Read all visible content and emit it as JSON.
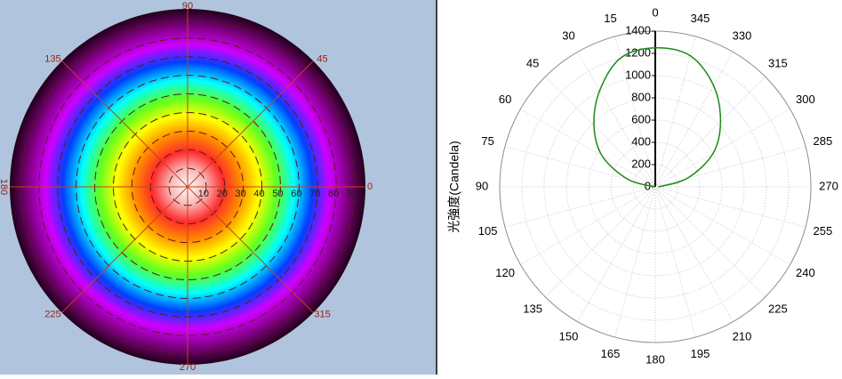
{
  "chart_data": [
    {
      "type": "polar-heatmap",
      "colormap": [
        "#ffffff",
        "#f8b8b8",
        "#ff2a2a",
        "#ff8c00",
        "#ffff00",
        "#60ff20",
        "#00ffff",
        "#0040ff",
        "#d000ff",
        "#800080",
        "#200018"
      ],
      "axis_color": "#c8401a",
      "angle_ticks": [
        0,
        45,
        90,
        135,
        180,
        225,
        270,
        315
      ],
      "rlim": [
        0,
        90
      ],
      "rticks": [
        10,
        20,
        30,
        40,
        50,
        60,
        70,
        80,
        90
      ]
    },
    {
      "type": "polar",
      "ylabel": "光強度(Candela)",
      "theta_ticks": [
        0,
        15,
        30,
        45,
        60,
        75,
        90,
        105,
        120,
        135,
        150,
        165,
        180,
        195,
        210,
        225,
        240,
        255,
        270,
        285,
        300,
        315,
        330,
        345
      ],
      "rlim": [
        0,
        1400
      ],
      "rticks": [
        0,
        200,
        400,
        600,
        800,
        1000,
        1200,
        1400
      ],
      "grid": true,
      "series": [
        {
          "color": "#1a8a1a",
          "x": [
            270,
            285,
            300,
            315,
            330,
            345,
            0,
            15,
            30,
            45,
            60,
            75,
            90
          ],
          "values": [
            30,
            300,
            600,
            830,
            1050,
            1220,
            1250,
            1200,
            1000,
            780,
            550,
            250,
            0
          ]
        }
      ]
    }
  ]
}
